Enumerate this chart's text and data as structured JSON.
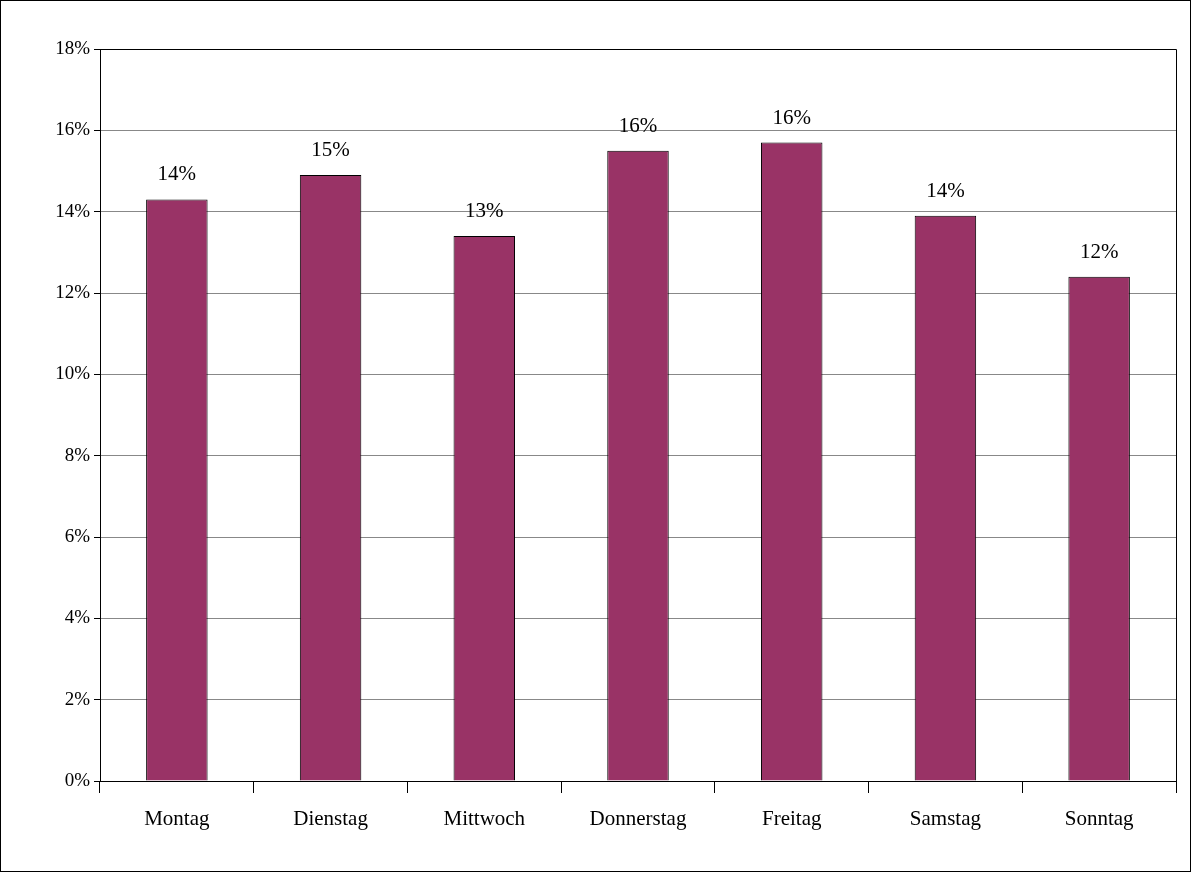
{
  "chart_data": {
    "type": "bar",
    "categories": [
      "Montag",
      "Dienstag",
      "Mittwoch",
      "Donnerstag",
      "Freitag",
      "Samstag",
      "Sonntag"
    ],
    "values": [
      14.3,
      14.9,
      13.4,
      15.5,
      15.7,
      13.9,
      12.4
    ],
    "value_labels": [
      "14%",
      "15%",
      "13%",
      "16%",
      "16%",
      "14%",
      "12%"
    ],
    "color": "#993366",
    "ylim": [
      0,
      18
    ],
    "yticks": [
      {
        "value": 0,
        "label": "0%"
      },
      {
        "value": 2,
        "label": "2%"
      },
      {
        "value": 4,
        "label": "4%"
      },
      {
        "value": 6,
        "label": "6%"
      },
      {
        "value": 8,
        "label": "8%"
      },
      {
        "value": 10,
        "label": "10%"
      },
      {
        "value": 12,
        "label": "12%"
      },
      {
        "value": 14,
        "label": "14%"
      },
      {
        "value": 16,
        "label": "16%"
      },
      {
        "value": 18,
        "label": "18%"
      }
    ],
    "grid": "y",
    "legend": false
  }
}
